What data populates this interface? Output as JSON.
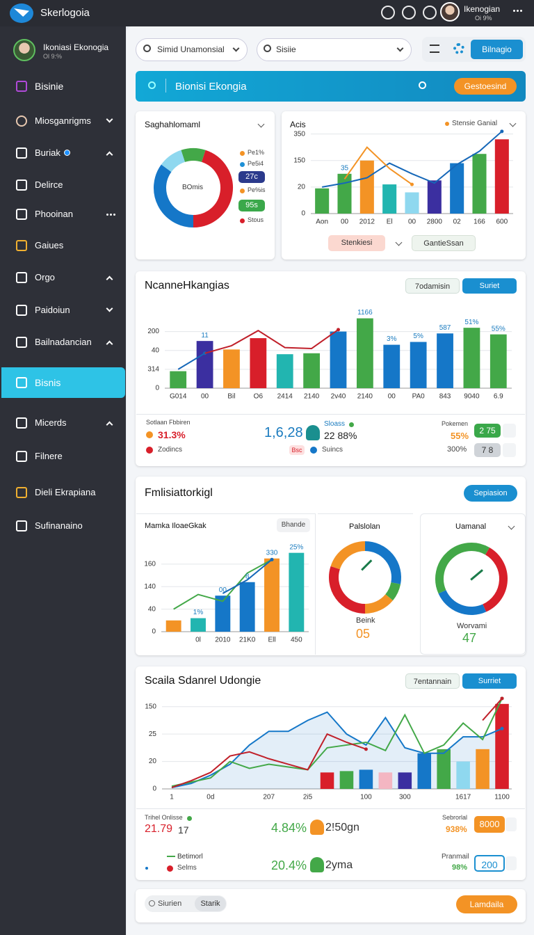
{
  "topbar": {
    "brand": "Skerlogoia",
    "user": "Ikenogian",
    "user_sub": "Oi 9%"
  },
  "sidebar": {
    "profile": "Ikoniasi Ekonogia",
    "profile_sub": "Ol 9:%",
    "active": 9,
    "items": [
      "Bisinie",
      "Miosganrigms",
      "Buriak",
      "Delirce",
      "Phooinan",
      "Gaiues",
      "Orgo",
      "Paidoiun",
      "Bailnadancian",
      "Bisnis",
      "Micerds",
      "Filnere",
      "Dieli Ekrapiana",
      "Sufinanaino"
    ]
  },
  "toolbar": {
    "search_1": "Simid Unamonsial",
    "search_2": "Sisiie",
    "button": "Bilnagio"
  },
  "banner": {
    "title": "Bionisi Ekongia",
    "button": "Gestoesind"
  },
  "donut_card": {
    "title": "Saghahlomaml",
    "center": "BOmis",
    "chart": {
      "type": "donut",
      "values": [
        10,
        45,
        35,
        10
      ],
      "colors": [
        "#43a848",
        "#d81f2a",
        "#1577c8",
        "#8fd8ef"
      ]
    },
    "legend": [
      {
        "label": "Pe1%",
        "style": "dot",
        "color": "#f39325"
      },
      {
        "label": "Pe5i4",
        "style": "dot",
        "color": "#1e90d6"
      },
      {
        "label": "27c",
        "style": "badge",
        "color": "#2b3a8c"
      },
      {
        "label": "Pe%is",
        "style": "dot",
        "color": "#f39325"
      },
      {
        "label": "95s",
        "style": "badge",
        "color": "#3aa84a"
      },
      {
        "label": "Stous",
        "style": "dot",
        "color": "#d81f2a"
      }
    ]
  },
  "acis_card": {
    "title": "Acis",
    "legend": "Stensie Ganial",
    "button_1": "Stenkiesi",
    "button_2": "GantieSsan",
    "chart": {
      "type": "combo",
      "ylim": [
        0,
        3.2
      ],
      "yticks": [
        0,
        {
          "value": 1,
          "label": "20"
        },
        {
          "value": 2,
          "label": "150"
        },
        {
          "value": 3,
          "label": "350"
        }
      ],
      "categories": [
        "Aon",
        "00",
        "2012",
        "El",
        "00",
        "2800",
        "02",
        "166",
        "600"
      ],
      "bar_values": [
        0.95,
        1.5,
        2.0,
        1.1,
        0.8,
        1.25,
        1.9,
        2.25,
        2.8
      ],
      "bar_colors": [
        "#43a848",
        "#43a848",
        "#f39325",
        "#22b5b0",
        "#8fd8ef",
        "#3b2fa0",
        "#1577c8",
        "#43a848",
        "#d81f2a"
      ],
      "annotations": [
        null,
        "35",
        null,
        null,
        null,
        null,
        null,
        null,
        null
      ],
      "lines": [
        {
          "color": "#1567b8",
          "values": [
            1.0,
            1.15,
            1.35,
            1.9,
            1.5,
            1.15,
            1.85,
            2.35,
            3.1
          ]
        },
        {
          "color": "#f39325",
          "values": [
            null,
            1.3,
            2.5,
            1.7,
            1.1,
            null,
            null,
            null,
            null
          ]
        }
      ]
    }
  },
  "ncanne_card": {
    "title": "NcanneHkangias",
    "button_1": "7odamisin",
    "button_2": "Suriet",
    "chart": {
      "type": "combo",
      "ylim": [
        0,
        4.2
      ],
      "yticks": [
        0,
        {
          "value": 1,
          "label": "314"
        },
        {
          "value": 2,
          "label": "40"
        },
        {
          "value": 3,
          "label": "200"
        }
      ],
      "categories": [
        "G014",
        "00",
        "Bil",
        "O6",
        "2414",
        "2140",
        "2v40",
        "2140",
        "00",
        "PA0",
        "843",
        "9040",
        "6.9"
      ],
      "bar_values": [
        0.9,
        2.5,
        2.05,
        2.65,
        1.8,
        1.85,
        3.0,
        3.7,
        2.3,
        2.45,
        2.9,
        3.2,
        2.85
      ],
      "bar_colors": [
        "#43a848",
        "#3b2fa0",
        "#f39325",
        "#d81f2a",
        "#22b5b0",
        "#43a848",
        "#1577c8",
        "#43a848",
        "#1577c8",
        "#1577c8",
        "#1577c8",
        "#43a848",
        "#43a848"
      ],
      "annotations": [
        null,
        "11",
        null,
        null,
        null,
        null,
        null,
        "1166",
        "3%",
        "5%",
        "587",
        "51%",
        "55%"
      ],
      "lines": [
        {
          "color": "#1567b8",
          "values": [
            1.0,
            1.85,
            null,
            null,
            null,
            null,
            null,
            null,
            null,
            null,
            null,
            null,
            null
          ]
        },
        {
          "color": "#c0202a",
          "values": [
            null,
            1.85,
            2.25,
            3.05,
            2.15,
            2.1,
            3.1,
            null,
            null,
            null,
            null,
            null,
            null
          ]
        }
      ]
    },
    "stats": {
      "left_title": "Sotlaan Fbbiren",
      "left_value": "31.3%",
      "left_sub": "Zodincs",
      "mid_value": "1,6,28",
      "mid_title": "Sloass",
      "mid_pct": "22 88%",
      "mid_badge": "Bsc",
      "mid_sub": "Suincs",
      "right_title": "Pokemen",
      "right_pct": "55%",
      "right_badge": "2 75",
      "right_sub": "300%",
      "right_badge_2": "7 8"
    }
  },
  "fml_card": {
    "title": "Fmlisiattorkigl",
    "button": "Sepiasion",
    "bar_panel": {
      "title": "Mamka IloaeGkak",
      "button": "Bhande",
      "chart": {
        "type": "combo",
        "ylim": [
          0,
          4.2
        ],
        "yticks": [
          0,
          {
            "value": 1,
            "label": "40"
          },
          {
            "value": 2,
            "label": "140"
          },
          {
            "value": 3,
            "label": "160"
          }
        ],
        "categories": [
          null,
          "0l",
          "2010",
          "21K0",
          "Ell",
          "450"
        ],
        "bar_values": [
          0.5,
          0.6,
          1.6,
          2.2,
          3.25,
          3.5
        ],
        "bar_colors": [
          "#f39325",
          "#22b5b0",
          "#1577c8",
          "#1577c8",
          "#f39325",
          "#22b5b0"
        ],
        "annotations": [
          null,
          "1%",
          "00",
          "8",
          "330",
          "25%"
        ],
        "lines": [
          {
            "color": "#43a848",
            "values": [
              1.0,
              1.65,
              1.35,
              2.6,
              3.2,
              null
            ]
          },
          {
            "color": "#1567b8",
            "values": [
              null,
              null,
              1.7,
              2.3,
              3.2,
              null
            ]
          }
        ]
      }
    },
    "gauge_1": {
      "title": "Palslolan",
      "label": "Beink",
      "value": "05",
      "chart": {
        "type": "donut",
        "values": [
          28,
          8,
          14,
          30,
          20
        ],
        "colors": [
          "#1577c8",
          "#43a848",
          "#f39325",
          "#d81f2a",
          "#f39325"
        ]
      }
    },
    "gauge_2": {
      "title": "Uamanal",
      "label": "Worvami",
      "value": "47",
      "chart": {
        "type": "donut",
        "values": [
          35,
          25,
          40
        ],
        "colors": [
          "#d81f2a",
          "#1577c8",
          "#43a848"
        ]
      }
    }
  },
  "scaila_card": {
    "title": "Scaila Sdanrel Udongie",
    "button_1": "7entannain",
    "button_2": "Surriet",
    "chart": {
      "type": "combo",
      "ylim": [
        0,
        3.4
      ],
      "yticks": [
        0,
        {
          "value": 1,
          "label": "20"
        },
        {
          "value": 2,
          "label": "25"
        },
        {
          "value": 3,
          "label": "150"
        }
      ],
      "categories": [
        "1",
        null,
        "0d",
        null,
        null,
        "207",
        null,
        "2i5",
        null,
        null,
        "100",
        null,
        "300",
        null,
        null,
        "1617",
        null,
        "1100"
      ],
      "bar_values": [
        null,
        null,
        null,
        null,
        null,
        null,
        null,
        null,
        0.6,
        0.65,
        0.7,
        0.6,
        0.6,
        1.3,
        1.45,
        1.0,
        1.45,
        3.1
      ],
      "bar_colors": [
        null,
        null,
        null,
        null,
        null,
        null,
        null,
        null,
        "#d81f2a",
        "#43a848",
        "#1577c8",
        "#f4b6c2",
        "#3b2fa0",
        "#1577c8",
        "#43a848",
        "#8fd8ef",
        "#f39325",
        "#d81f2a"
      ],
      "lines": [
        {
          "color": "#1577c8",
          "area": true,
          "values": [
            0.05,
            0.2,
            0.5,
            0.9,
            1.6,
            2.1,
            2.1,
            2.5,
            2.8,
            2.0,
            1.6,
            2.6,
            1.5,
            1.3,
            1.3,
            1.9,
            1.9,
            2.2
          ]
        },
        {
          "color": "#43a848",
          "values": [
            0.1,
            0.25,
            0.4,
            1.0,
            0.75,
            0.9,
            0.8,
            0.7,
            1.5,
            1.6,
            1.7,
            1.4,
            2.7,
            1.3,
            1.6,
            2.4,
            1.8,
            3.3
          ]
        },
        {
          "color": "#c0202a",
          "values": [
            0.05,
            0.3,
            0.6,
            1.2,
            1.35,
            1.1,
            0.9,
            0.7,
            2.0,
            1.7,
            1.45,
            null,
            null,
            null,
            null,
            null,
            2.5,
            3.3
          ]
        }
      ]
    },
    "stats": {
      "r1_title": "Trihel Onlisse",
      "r1_value": "21.79",
      "r1_value_2": "17",
      "r1_pct": "4.84%",
      "r1_text": "2!50gn",
      "r1_right_title": "Sebrorlal",
      "r1_right_pct": "938%",
      "r1_badge": "8000",
      "r2_title": "Betimorl",
      "r2_sub": "Selms",
      "r2_pct": "20.4%",
      "r2_text": "2yma",
      "r2_right_title": "Pranmail",
      "r2_right_pct": "98%",
      "r2_badge": "200"
    }
  },
  "footer": {
    "tab_1": "Siurien",
    "tab_2": "Starik",
    "button": "Lamdaila"
  }
}
